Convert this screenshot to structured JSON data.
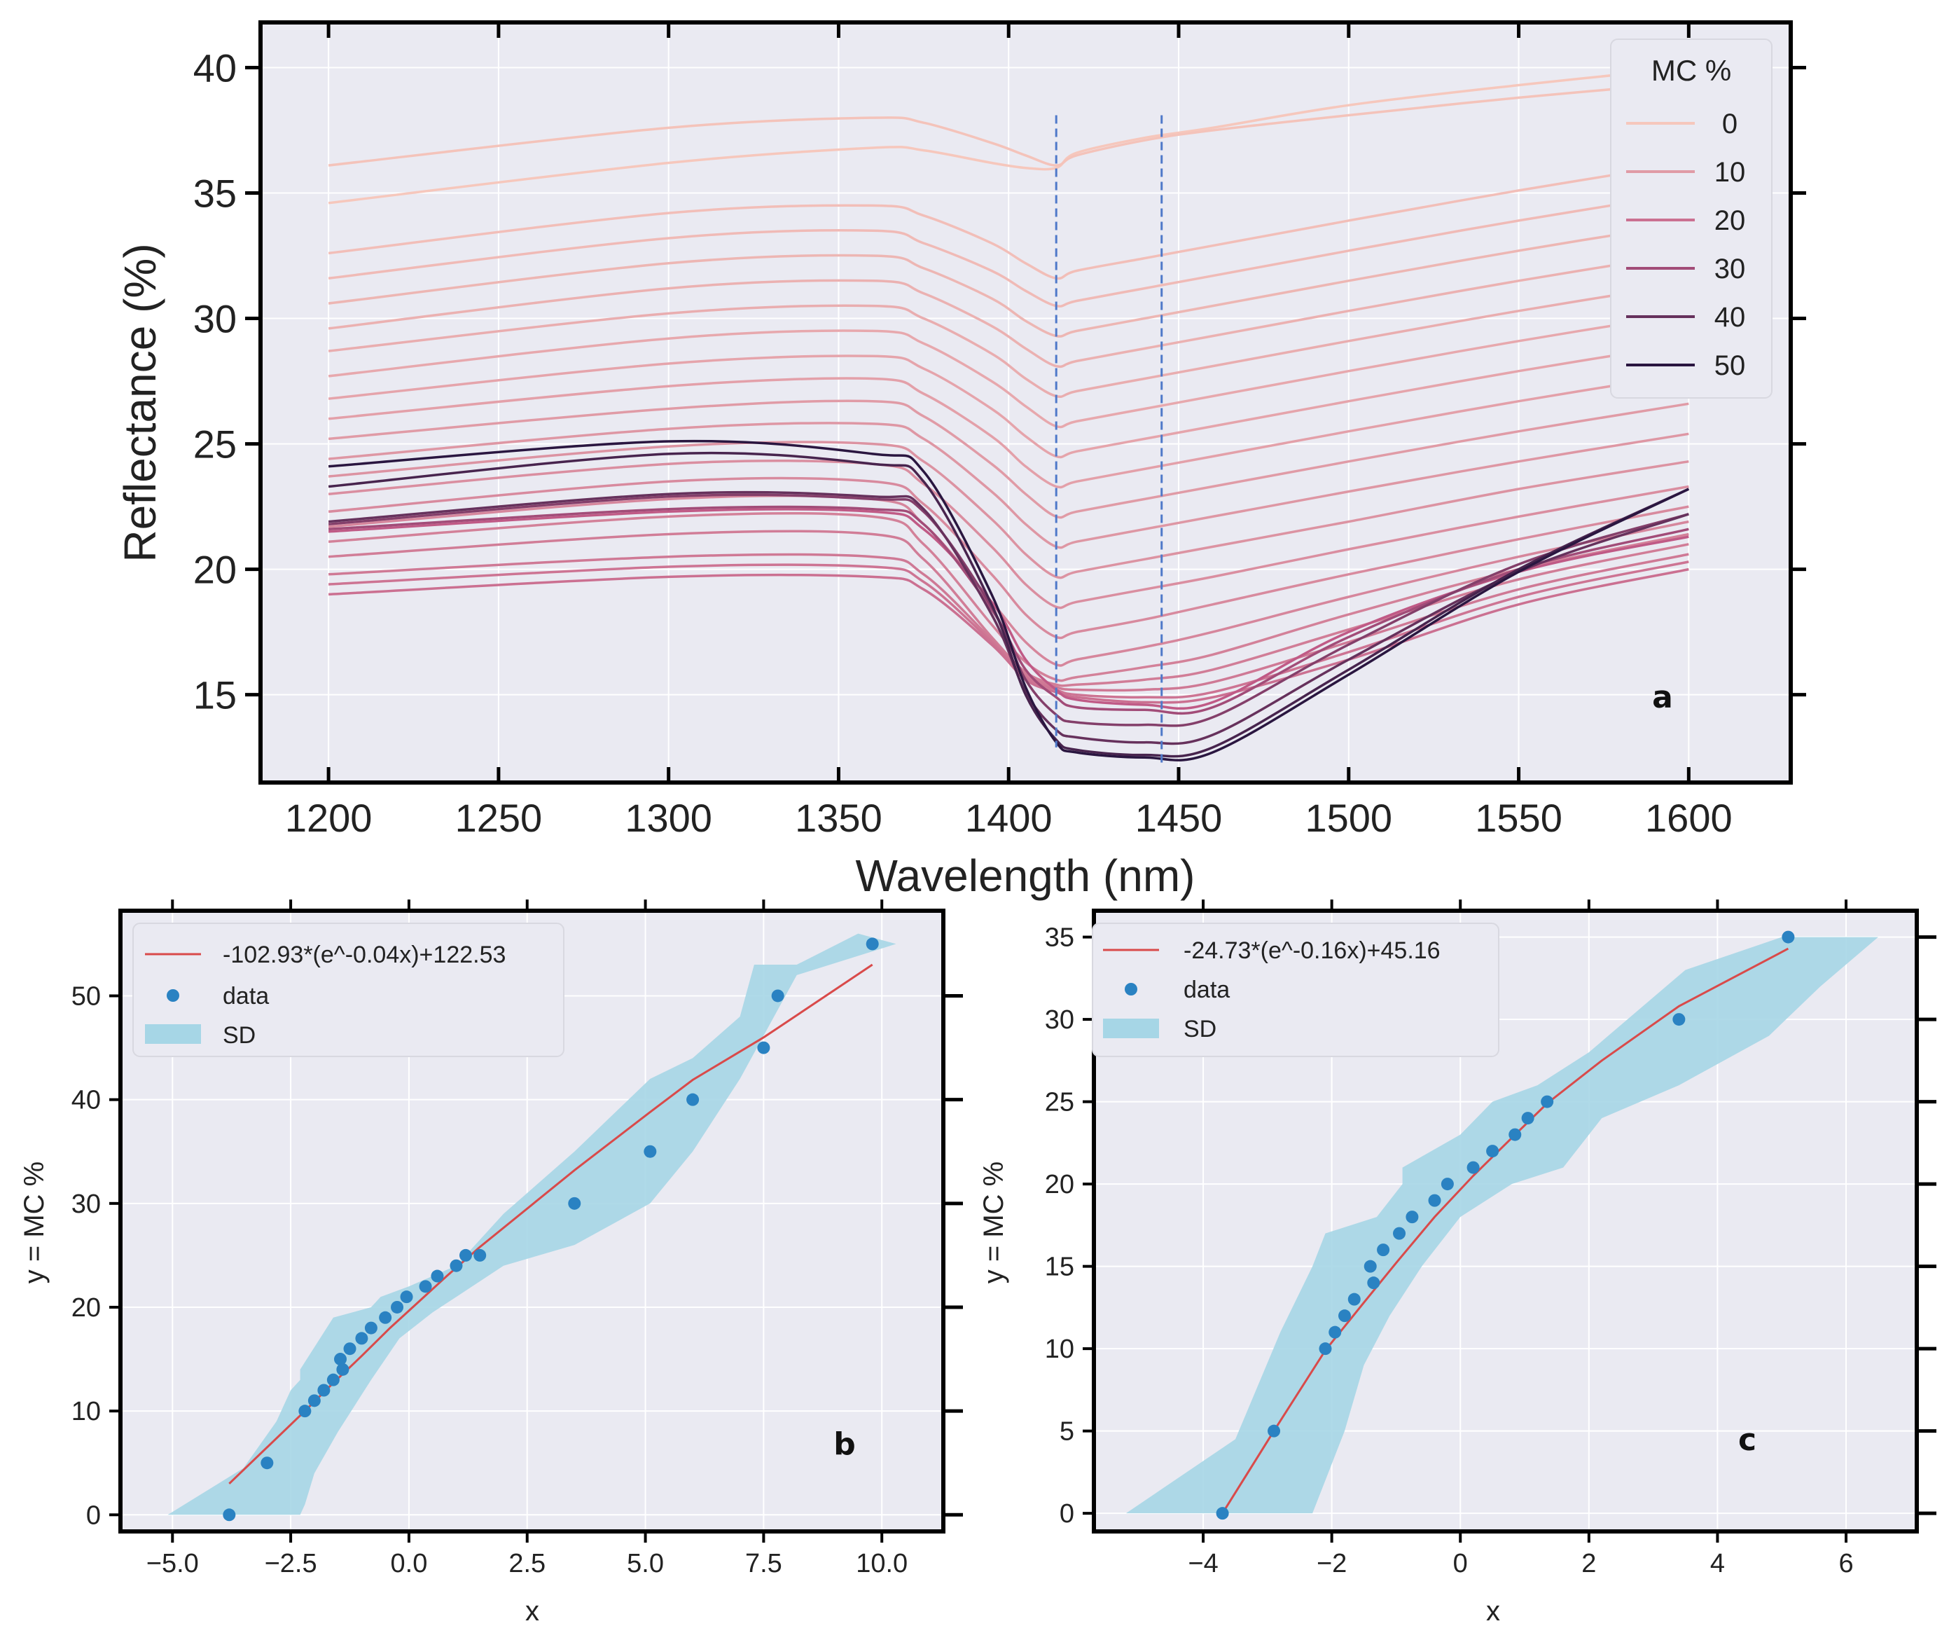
{
  "chart_data": [
    {
      "type": "line",
      "panel": "a",
      "xlabel": "Wavelength (nm)",
      "ylabel": "Reflectance (%)",
      "xlim": [
        1180,
        1630
      ],
      "ylim": [
        11.5,
        41.8
      ],
      "xticks": [
        1200,
        1250,
        1300,
        1350,
        1400,
        1450,
        1500,
        1550,
        1600
      ],
      "yticks": [
        15,
        20,
        25,
        30,
        35,
        40
      ],
      "legend": {
        "title": "MC %",
        "position": "top-right",
        "entries": [
          "0",
          "10",
          "20",
          "30",
          "40",
          "50"
        ]
      },
      "reference_lines_x": [
        1414,
        1445
      ],
      "palette": {
        "low": "#f6c7bc",
        "mid": "#c05a86",
        "high": "#2a1640"
      },
      "series_profile_x": [
        1200,
        1300,
        1360,
        1375,
        1395,
        1405,
        1414,
        1420,
        1440,
        1460,
        1500,
        1550,
        1600
      ],
      "series": [
        {
          "mc": 0,
          "values": [
            34.6,
            36.2,
            36.8,
            36.7,
            36.2,
            36.0,
            36.0,
            36.6,
            37.2,
            37.6,
            38.5,
            39.3,
            40.0
          ]
        },
        {
          "mc": 1,
          "values": [
            36.1,
            37.6,
            38.0,
            37.8,
            37.0,
            36.5,
            36.1,
            36.5,
            37.1,
            37.5,
            38.1,
            38.8,
            39.4
          ]
        },
        {
          "mc": 2,
          "values": [
            32.6,
            34.2,
            34.5,
            34.1,
            33.0,
            32.2,
            31.6,
            31.9,
            32.4,
            32.9,
            33.9,
            35.1,
            36.2
          ]
        },
        {
          "mc": 3,
          "values": [
            31.6,
            33.2,
            33.5,
            33.0,
            31.9,
            31.1,
            30.5,
            30.7,
            31.2,
            31.7,
            32.7,
            33.9,
            35.0
          ]
        },
        {
          "mc": 4,
          "values": [
            30.6,
            32.2,
            32.5,
            32.0,
            30.8,
            29.9,
            29.3,
            29.5,
            30.0,
            30.5,
            31.5,
            32.7,
            33.8
          ]
        },
        {
          "mc": 5,
          "values": [
            29.6,
            31.2,
            31.5,
            31.0,
            29.7,
            28.8,
            28.1,
            28.3,
            28.8,
            29.3,
            30.3,
            31.5,
            32.6
          ]
        },
        {
          "mc": 6,
          "values": [
            28.7,
            30.2,
            30.5,
            30.0,
            28.6,
            27.6,
            26.9,
            27.1,
            27.6,
            28.1,
            29.1,
            30.3,
            31.4
          ]
        },
        {
          "mc": 7,
          "values": [
            27.7,
            29.2,
            29.5,
            29.0,
            27.5,
            26.5,
            25.7,
            25.9,
            26.4,
            26.9,
            27.9,
            29.1,
            30.2
          ]
        },
        {
          "mc": 8,
          "values": [
            26.8,
            28.2,
            28.5,
            28.0,
            26.4,
            25.3,
            24.5,
            24.7,
            25.2,
            25.7,
            26.7,
            27.9,
            29.0
          ]
        },
        {
          "mc": 9,
          "values": [
            26.0,
            27.3,
            27.6,
            27.0,
            25.3,
            24.1,
            23.3,
            23.5,
            24.0,
            24.5,
            25.5,
            26.7,
            27.8
          ]
        },
        {
          "mc": 10,
          "values": [
            25.2,
            26.4,
            26.7,
            26.1,
            24.2,
            23.0,
            22.1,
            22.3,
            22.8,
            23.3,
            24.3,
            25.5,
            26.6
          ]
        },
        {
          "mc": 11,
          "values": [
            24.4,
            25.6,
            25.8,
            25.2,
            23.1,
            21.8,
            20.9,
            21.1,
            21.6,
            22.1,
            23.1,
            24.3,
            25.4
          ]
        },
        {
          "mc": 12,
          "values": [
            23.7,
            24.9,
            25.0,
            24.3,
            22.0,
            20.6,
            19.7,
            19.9,
            20.4,
            20.9,
            21.9,
            23.2,
            24.3
          ]
        },
        {
          "mc": 13,
          "values": [
            23.0,
            24.2,
            24.2,
            23.4,
            20.9,
            19.4,
            18.5,
            18.7,
            19.2,
            19.7,
            20.8,
            22.1,
            23.3
          ]
        },
        {
          "mc": 14,
          "values": [
            22.3,
            23.5,
            23.5,
            22.6,
            19.8,
            18.2,
            17.3,
            17.5,
            18.0,
            18.6,
            19.8,
            21.2,
            22.5
          ]
        },
        {
          "mc": 15,
          "values": [
            21.7,
            22.8,
            22.8,
            21.8,
            18.7,
            17.1,
            16.2,
            16.4,
            16.9,
            17.5,
            18.9,
            20.5,
            21.9
          ]
        },
        {
          "mc": 16,
          "values": [
            21.1,
            22.1,
            22.1,
            21.0,
            17.8,
            16.3,
            15.6,
            15.7,
            16.1,
            16.6,
            18.2,
            20.0,
            21.4
          ]
        },
        {
          "mc": 17,
          "values": [
            20.5,
            21.4,
            21.4,
            20.4,
            17.3,
            15.9,
            15.4,
            15.4,
            15.6,
            16.0,
            17.6,
            19.6,
            21.0
          ]
        },
        {
          "mc": 18,
          "values": [
            19.8,
            20.5,
            20.5,
            19.8,
            17.2,
            15.8,
            15.3,
            15.2,
            15.2,
            15.5,
            17.1,
            19.2,
            20.6
          ]
        },
        {
          "mc": 19,
          "values": [
            19.4,
            20.1,
            20.1,
            19.5,
            17.1,
            15.7,
            15.2,
            15.0,
            14.9,
            15.1,
            16.7,
            18.9,
            20.3
          ]
        },
        {
          "mc": 20,
          "values": [
            19.0,
            19.7,
            19.7,
            19.2,
            17.0,
            15.6,
            15.1,
            14.9,
            14.7,
            14.9,
            16.4,
            18.6,
            20.0
          ]
        },
        {
          "mc": 25,
          "values": [
            21.5,
            22.3,
            22.3,
            21.6,
            18.7,
            16.4,
            15.2,
            14.8,
            14.6,
            14.7,
            17.5,
            19.9,
            21.3
          ]
        },
        {
          "mc": 30,
          "values": [
            21.6,
            22.4,
            22.4,
            21.8,
            18.4,
            16.0,
            14.9,
            14.5,
            14.4,
            14.5,
            17.3,
            20.0,
            21.6
          ]
        },
        {
          "mc": 35,
          "values": [
            21.8,
            22.9,
            22.8,
            22.3,
            18.5,
            15.6,
            14.2,
            13.9,
            13.8,
            14.1,
            17.0,
            20.2,
            22.2
          ]
        },
        {
          "mc": 40,
          "values": [
            21.9,
            23.0,
            22.9,
            22.4,
            18.2,
            15.1,
            13.6,
            13.3,
            13.1,
            13.4,
            16.4,
            19.9,
            22.2
          ]
        },
        {
          "mc": 45,
          "values": [
            23.3,
            24.6,
            24.2,
            23.5,
            18.6,
            15.0,
            13.2,
            12.8,
            12.6,
            12.9,
            16.0,
            20.0,
            23.2
          ]
        },
        {
          "mc": 50,
          "values": [
            24.1,
            25.1,
            24.6,
            23.9,
            19.0,
            15.3,
            13.1,
            12.7,
            12.5,
            12.7,
            15.8,
            19.9,
            23.2
          ]
        }
      ]
    },
    {
      "type": "scatter",
      "panel": "b",
      "xlabel": "x",
      "ylabel": "y = MC %",
      "xlim": [
        -6.1,
        11.3
      ],
      "ylim": [
        -1.6,
        58.2
      ],
      "xticks": [
        -5.0,
        -2.5,
        0.0,
        2.5,
        5.0,
        7.5,
        10.0
      ],
      "xtick_labels": [
        "−5.0",
        "−2.5",
        "0.0",
        "2.5",
        "5.0",
        "7.5",
        "10.0"
      ],
      "yticks": [
        0,
        10,
        20,
        30,
        40,
        50
      ],
      "legend": {
        "position": "top-left",
        "fit_label": "-102.93*(e^-0.04x)+122.53",
        "data_label": "data",
        "sd_label": "SD"
      },
      "data_x": [
        -3.8,
        -3.0,
        -2.2,
        -2.0,
        -1.8,
        -1.6,
        -1.45,
        -1.4,
        -1.25,
        -1.0,
        -0.8,
        -0.5,
        -0.25,
        -0.05,
        0.35,
        0.6,
        1.0,
        1.2,
        1.5,
        3.5,
        5.1,
        6.0,
        7.5,
        7.8,
        9.8
      ],
      "data_y": [
        0,
        5,
        10,
        11,
        12,
        13,
        15,
        14,
        16,
        17,
        18,
        19,
        20,
        21,
        22,
        23,
        24,
        25,
        25,
        30,
        35,
        40,
        45,
        50,
        55
      ],
      "fit_x": [
        -3.8,
        -3.0,
        -2.2,
        -1.6,
        -1.0,
        -0.4,
        0.2,
        0.8,
        1.5,
        3.5,
        5.1,
        6.0,
        7.5,
        7.8,
        9.8
      ],
      "fit_y": [
        3.0,
        6.5,
        10.0,
        12.7,
        15.3,
        18.0,
        20.5,
        23.0,
        25.8,
        33.2,
        38.8,
        41.9,
        46.0,
        46.9,
        53.0
      ],
      "sd_upper_x": [
        -5.1,
        -3.5,
        -2.8,
        -2.5,
        -2.3,
        -2.3,
        -1.6,
        -0.8,
        -0.6,
        0.0,
        1.0,
        2.0,
        3.5,
        5.1,
        6.0,
        7.0,
        7.3,
        8.2,
        9.5,
        10.3
      ],
      "sd_upper_y": [
        0,
        4.5,
        9,
        12,
        13,
        14,
        19,
        20,
        21,
        22,
        24,
        29,
        35,
        42,
        44,
        48,
        53,
        53,
        56,
        55
      ],
      "sd_lower_x": [
        10.3,
        8.2,
        7.0,
        6.0,
        5.1,
        3.5,
        2.0,
        1.0,
        0.5,
        -0.2,
        -0.8,
        -1.5,
        -2.0,
        -2.2,
        -2.3
      ],
      "sd_lower_y": [
        55,
        52,
        42,
        35,
        30,
        26,
        24,
        21,
        19.5,
        17,
        13,
        8,
        4,
        1,
        0
      ]
    },
    {
      "type": "scatter",
      "panel": "c",
      "xlabel": "x",
      "ylabel": "y = MC %",
      "xlim": [
        -5.7,
        7.1
      ],
      "ylim": [
        -1.1,
        36.6
      ],
      "xticks": [
        -4,
        -2,
        0,
        2,
        4,
        6
      ],
      "xtick_labels": [
        "−4",
        "−2",
        "0",
        "2",
        "4",
        "6"
      ],
      "yticks": [
        0,
        5,
        10,
        15,
        20,
        25,
        30,
        35
      ],
      "legend": {
        "position": "top-left",
        "fit_label": "-24.73*(e^-0.16x)+45.16",
        "data_label": "data",
        "sd_label": "SD"
      },
      "data_x": [
        -3.7,
        -2.9,
        -2.1,
        -1.95,
        -1.8,
        -1.65,
        -1.4,
        -1.35,
        -1.2,
        -0.95,
        -0.75,
        -0.4,
        -0.2,
        0.2,
        0.5,
        0.85,
        1.05,
        1.35,
        3.4,
        5.1
      ],
      "data_y": [
        0,
        5,
        10,
        11,
        12,
        13,
        15,
        14,
        16,
        17,
        18,
        19,
        20,
        21,
        22,
        23,
        24,
        25,
        30,
        35
      ],
      "fit_x": [
        -3.7,
        -2.9,
        -2.1,
        -1.5,
        -1.0,
        -0.4,
        0.2,
        0.8,
        1.35,
        2.2,
        3.4,
        5.1
      ],
      "fit_y": [
        0,
        5.0,
        9.9,
        12.8,
        15.2,
        18.0,
        20.5,
        22.8,
        24.9,
        27.5,
        30.8,
        34.3
      ],
      "sd_upper_x": [
        -5.2,
        -3.5,
        -2.8,
        -2.3,
        -2.1,
        -1.3,
        -0.9,
        -0.9,
        0.0,
        0.5,
        1.2,
        2.0,
        3.5,
        5.0,
        6.5
      ],
      "sd_upper_y": [
        0,
        4.5,
        11,
        15,
        17,
        18,
        20,
        21,
        23,
        25,
        26,
        28,
        33,
        35,
        35
      ],
      "sd_lower_x": [
        6.5,
        5.6,
        4.8,
        3.4,
        2.2,
        1.6,
        0.8,
        0.0,
        -0.6,
        -1.1,
        -1.5,
        -1.8,
        -2.1,
        -2.3
      ],
      "sd_lower_y": [
        35,
        32,
        29,
        26,
        24,
        21,
        20,
        18,
        15,
        12,
        9,
        5,
        2,
        0
      ]
    }
  ],
  "panel_letters": {
    "a": "a",
    "b": "b",
    "c": "c"
  },
  "colors": {
    "plot_bg": "#eaeaf2",
    "grid": "#ffffff",
    "frame": "#000000",
    "dashed": "#4f79c9",
    "fit": "#d94a4a",
    "dots": "#2a82c2",
    "sd_fill": "#a6d6e6"
  }
}
